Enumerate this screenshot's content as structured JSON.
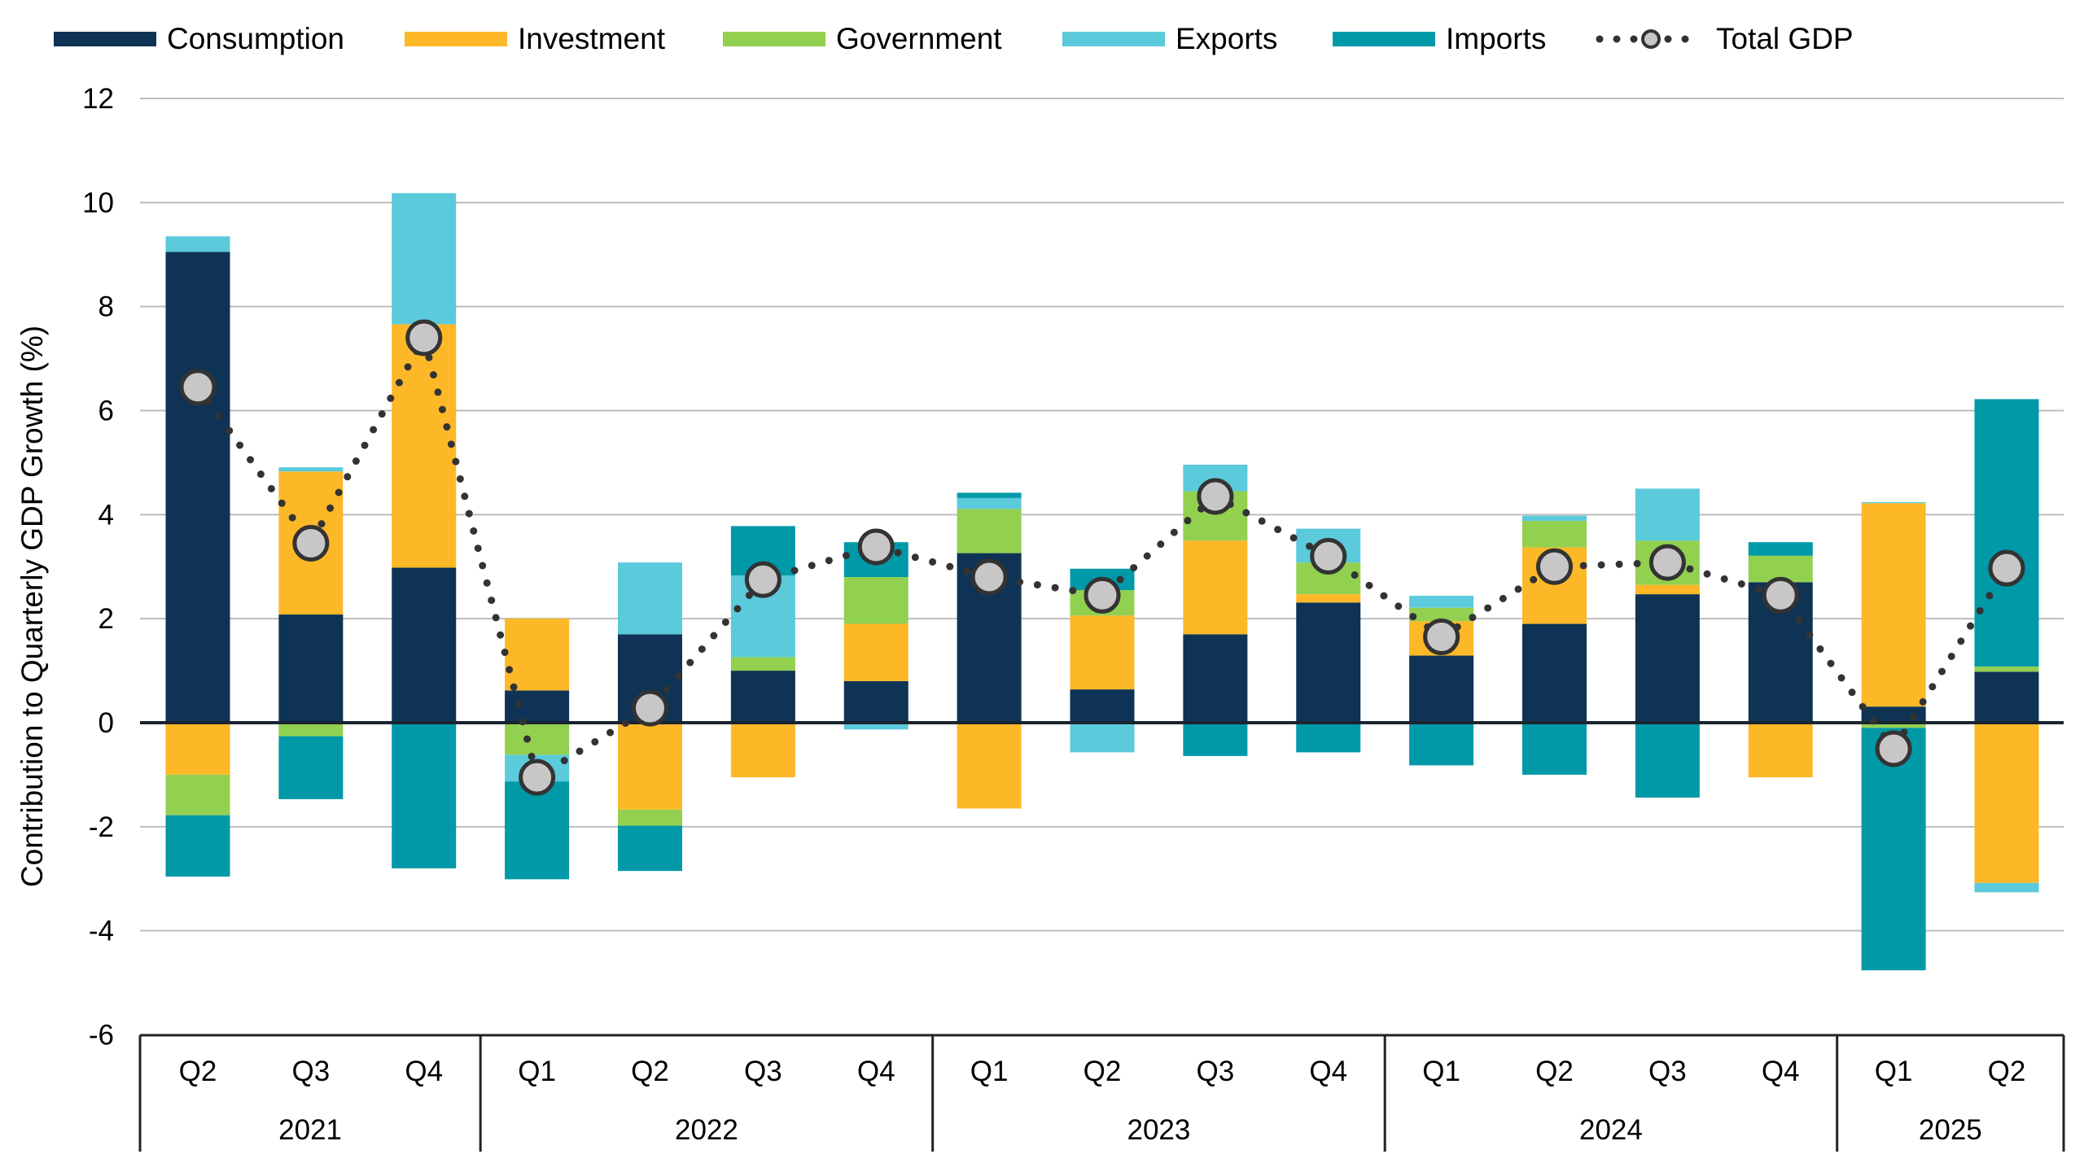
{
  "chart_data": {
    "type": "bar",
    "stacked": true,
    "title": "",
    "xlabel": "",
    "ylabel": "Contribution to Quarterly GDP Growth (%)",
    "ylim": [
      -6,
      12
    ],
    "yticks": [
      -6,
      -4,
      -2,
      0,
      2,
      4,
      6,
      8,
      10,
      12
    ],
    "grid": true,
    "legend_position": "top",
    "categories": [
      "Q2",
      "Q3",
      "Q4",
      "Q1",
      "Q2",
      "Q3",
      "Q4",
      "Q1",
      "Q2",
      "Q3",
      "Q4",
      "Q1",
      "Q2",
      "Q3",
      "Q4",
      "Q1",
      "Q2"
    ],
    "year_groups": [
      {
        "label": "2021",
        "count": 3
      },
      {
        "label": "2022",
        "count": 4
      },
      {
        "label": "2023",
        "count": 4
      },
      {
        "label": "2024",
        "count": 4
      },
      {
        "label": "2025",
        "count": 2
      }
    ],
    "series": [
      {
        "name": "Consumption",
        "color": "#0e3354",
        "values": [
          9.05,
          2.08,
          2.98,
          0.62,
          1.7,
          1.0,
          0.8,
          3.26,
          0.64,
          1.7,
          2.31,
          1.29,
          1.9,
          2.47,
          2.7,
          0.31,
          0.98
        ]
      },
      {
        "name": "Investment",
        "color": "#fdb827",
        "values": [
          -1.0,
          2.75,
          4.68,
          1.38,
          -1.67,
          -1.05,
          1.1,
          -1.65,
          1.42,
          1.8,
          0.16,
          0.66,
          1.47,
          0.18,
          -1.05,
          3.91,
          -3.08
        ]
      },
      {
        "name": "Government",
        "color": "#92d050",
        "values": [
          -0.78,
          -0.26,
          0.0,
          -0.62,
          -0.31,
          0.26,
          0.9,
          0.85,
          0.49,
          0.95,
          0.61,
          0.26,
          0.51,
          0.85,
          0.51,
          -0.1,
          0.1
        ]
      },
      {
        "name": "Exports",
        "color": "#5bcadb",
        "values": [
          0.3,
          0.08,
          2.52,
          -0.51,
          1.38,
          1.57,
          -0.13,
          0.21,
          -0.57,
          0.51,
          0.65,
          0.23,
          0.1,
          1.0,
          0.0,
          0.02,
          -0.18
        ]
      },
      {
        "name": "Imports",
        "color": "#0099a8",
        "values": [
          -1.18,
          -1.21,
          -2.8,
          -1.88,
          -0.87,
          0.95,
          0.67,
          0.1,
          0.41,
          -0.64,
          -0.57,
          -0.82,
          -1.0,
          -1.44,
          0.26,
          -4.66,
          5.14
        ]
      }
    ],
    "line": {
      "name": "Total GDP",
      "color": "#333333",
      "marker_fill": "#c8c6c7",
      "values": [
        6.45,
        3.45,
        7.4,
        -1.05,
        0.28,
        2.75,
        3.38,
        2.8,
        2.45,
        4.35,
        3.2,
        1.65,
        3.0,
        3.08,
        2.45,
        -0.5,
        2.97
      ]
    }
  }
}
